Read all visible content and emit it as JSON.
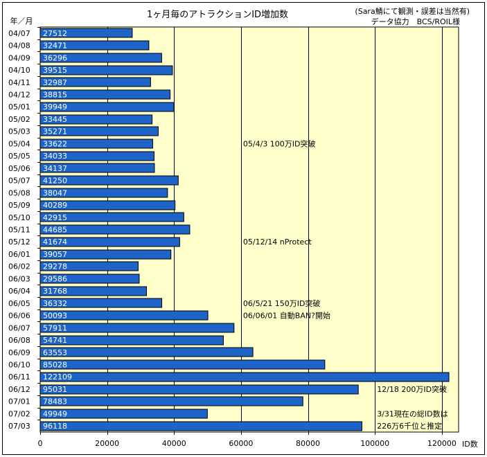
{
  "chart_data": {
    "type": "bar",
    "orientation": "horizontal",
    "title": "1ヶ月毎のアトラクションID増加数",
    "note_line1": "(Sara鯖にて観測・誤差は当然有)",
    "note_line2": "データ協力　BCS/ROIL様",
    "ylabel": "年／月",
    "xlabel": "ID数",
    "xlim": [
      0,
      125000
    ],
    "xticks": [
      0,
      20000,
      40000,
      60000,
      80000,
      100000,
      120000
    ],
    "xtick_labels": [
      "0",
      "20000",
      "40000",
      "60000",
      "80000",
      "100000",
      "120000"
    ],
    "grid": true,
    "plot_background": "#ffffcc",
    "bar_color": "#1e64c8",
    "categories": [
      "04/07",
      "04/08",
      "04/09",
      "04/10",
      "04/11",
      "04/12",
      "05/01",
      "05/02",
      "05/03",
      "05/04",
      "05/05",
      "05/06",
      "05/07",
      "05/08",
      "05/09",
      "05/10",
      "05/11",
      "05/12",
      "06/01",
      "06/02",
      "06/03",
      "06/04",
      "06/05",
      "06/06",
      "06/07",
      "06/08",
      "06/09",
      "06/10",
      "06/11",
      "06/12",
      "07/01",
      "07/02",
      "07/03"
    ],
    "values": [
      27512,
      32471,
      36296,
      39515,
      32987,
      38815,
      39949,
      33445,
      35271,
      33622,
      34033,
      34137,
      41250,
      38047,
      40289,
      42915,
      44685,
      41674,
      39057,
      29278,
      29586,
      31768,
      36332,
      50093,
      57911,
      54741,
      63553,
      85028,
      122109,
      95031,
      78483,
      49949,
      96118
    ],
    "value_labels": [
      "27512",
      "32471",
      "36296",
      "39515",
      "32987",
      "38815",
      "39949",
      "33445",
      "35271",
      "33622",
      "34033",
      "34137",
      "41250",
      "38047",
      "40289",
      "42915",
      "44685",
      "41674",
      "39057",
      "29278",
      "29586",
      "31768",
      "36332",
      "50093",
      "57911",
      "54741",
      "63553",
      "85028",
      "122109",
      "95031",
      "78483",
      "49949",
      "96118"
    ],
    "annotations": [
      {
        "category": "05/04",
        "x": 60000,
        "text": "05/4/3 100万ID突破"
      },
      {
        "category": "05/12",
        "x": 60000,
        "text": "05/12/14 nProtect"
      },
      {
        "category": "06/05",
        "x": 60000,
        "text": "06/5/21 150万ID突破"
      },
      {
        "category": "06/06",
        "x": 60000,
        "text": "06/06/01 自動BAN?開始"
      },
      {
        "category": "06/12",
        "x": 100000,
        "text": "12/18 200万ID突破"
      },
      {
        "category": "07/02",
        "x": 100000,
        "text": "3/31現在の総ID数は"
      },
      {
        "category": "07/03",
        "x": 100000,
        "text": "226万6千位と推定"
      }
    ]
  }
}
